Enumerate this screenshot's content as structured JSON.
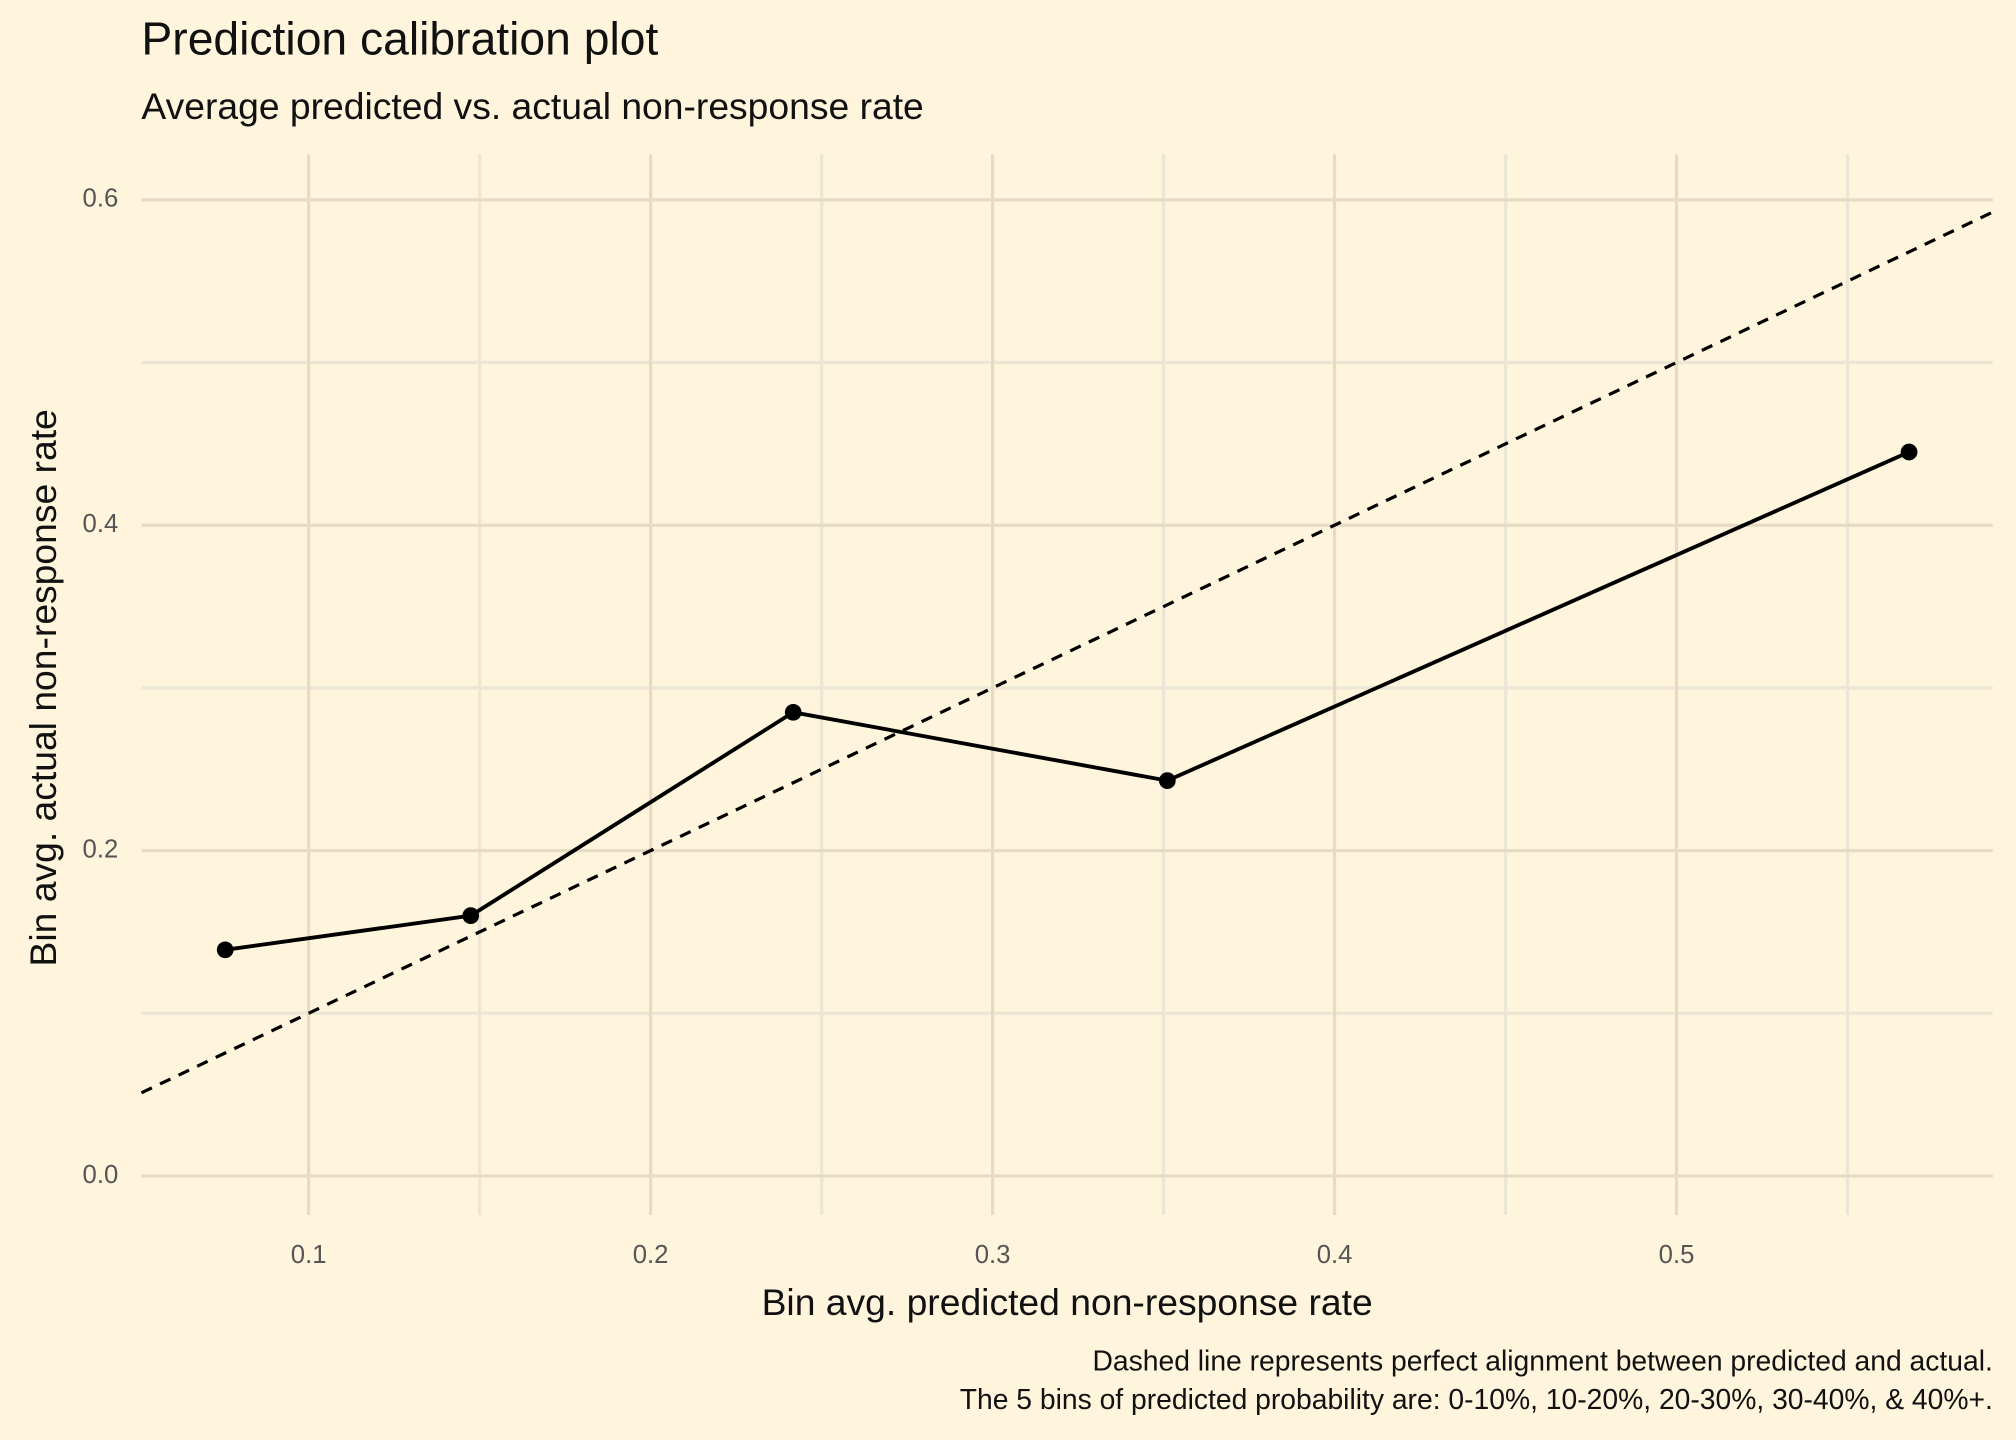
{
  "chart_data": {
    "type": "line",
    "title": "Prediction calibration plot",
    "subtitle": "Average predicted vs. actual non-response rate",
    "x_label": "Bin avg. predicted non-response rate",
    "y_label": "Bin avg. actual non-response rate",
    "caption": [
      "Dashed line represents perfect alignment between predicted and actual.",
      "The 5 bins of predicted probability are: 0-10%, 10-20%, 20-30%, 30-40%, & 40%+."
    ],
    "x": [
      0.0756,
      0.1474,
      0.2417,
      0.3511,
      0.568
    ],
    "series": [
      {
        "color": "#000000",
        "values": [
          0.139,
          0.16,
          0.285,
          0.243,
          0.445
        ]
      }
    ],
    "xlim": [
      0.0511,
      0.5925
    ],
    "ylim": [
      -0.024,
      0.628
    ],
    "xticks": [
      0.1,
      0.2,
      0.3,
      0.4,
      0.5
    ],
    "yticks": [
      {
        "value": 0,
        "label": "0.0"
      },
      0.2,
      0.4,
      0.6
    ],
    "identity_line": true,
    "grid": true
  }
}
